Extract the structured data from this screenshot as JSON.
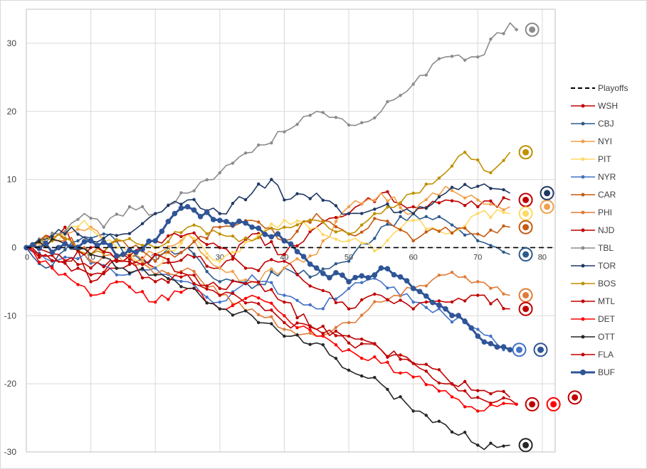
{
  "chart_data": {
    "type": "line",
    "title": "",
    "xlabel": "",
    "ylabel": "",
    "xlim": [
      0,
      82
    ],
    "ylim": [
      -30,
      35
    ],
    "x_ticks": [
      0,
      10,
      20,
      30,
      40,
      50,
      60,
      70,
      80
    ],
    "y_ticks": [
      -30,
      -20,
      -10,
      0,
      10,
      20,
      30
    ],
    "grid": "vertical and horizontal major gridlines",
    "legend_position": "right",
    "reference_line": {
      "name": "Playoffs",
      "y": 0,
      "style": "dashed",
      "color": "#000000"
    },
    "series": [
      {
        "name": "WSH",
        "color": "#C00000",
        "final_x": 75,
        "final_y": 7,
        "anchors": [
          [
            0,
            0
          ],
          [
            6,
            3
          ],
          [
            10,
            -5
          ],
          [
            15,
            -1
          ],
          [
            20,
            -3
          ],
          [
            25,
            -1
          ],
          [
            30,
            -3
          ],
          [
            35,
            2
          ],
          [
            40,
            -1
          ],
          [
            45,
            3
          ],
          [
            50,
            5
          ],
          [
            55,
            8
          ],
          [
            60,
            6
          ],
          [
            65,
            7
          ],
          [
            70,
            6
          ],
          [
            75,
            7
          ]
        ]
      },
      {
        "name": "CBJ",
        "color": "#2E5A8C",
        "final_x": 75,
        "final_y": -1,
        "anchors": [
          [
            0,
            0
          ],
          [
            3,
            -3
          ],
          [
            8,
            1
          ],
          [
            12,
            2
          ],
          [
            18,
            -2
          ],
          [
            25,
            0
          ],
          [
            30,
            -5
          ],
          [
            35,
            -6
          ],
          [
            40,
            -3
          ],
          [
            45,
            -4
          ],
          [
            50,
            -2
          ],
          [
            55,
            3
          ],
          [
            60,
            5
          ],
          [
            65,
            4
          ],
          [
            70,
            1
          ],
          [
            75,
            -1
          ]
        ]
      },
      {
        "name": "NYI",
        "color": "#F0A04B",
        "final_x": 75,
        "final_y": 6,
        "anchors": [
          [
            0,
            0
          ],
          [
            5,
            2
          ],
          [
            10,
            3
          ],
          [
            15,
            -2
          ],
          [
            20,
            -1
          ],
          [
            25,
            2
          ],
          [
            30,
            -3
          ],
          [
            35,
            -5
          ],
          [
            40,
            -3
          ],
          [
            45,
            -1
          ],
          [
            50,
            6
          ],
          [
            55,
            8
          ],
          [
            60,
            5
          ],
          [
            65,
            9
          ],
          [
            70,
            7
          ],
          [
            75,
            6
          ]
        ]
      },
      {
        "name": "PIT",
        "color": "#FFD966",
        "final_x": 75,
        "final_y": 5,
        "anchors": [
          [
            0,
            0
          ],
          [
            5,
            1
          ],
          [
            9,
            4
          ],
          [
            14,
            0
          ],
          [
            20,
            -3
          ],
          [
            25,
            2
          ],
          [
            30,
            -2
          ],
          [
            35,
            1
          ],
          [
            40,
            4
          ],
          [
            45,
            3
          ],
          [
            50,
            1
          ],
          [
            55,
            0
          ],
          [
            60,
            4
          ],
          [
            65,
            2
          ],
          [
            70,
            5
          ],
          [
            75,
            5
          ]
        ]
      },
      {
        "name": "NYR",
        "color": "#4472C4",
        "final_x": 74,
        "final_y": -15,
        "anchors": [
          [
            0,
            0
          ],
          [
            4,
            -2
          ],
          [
            9,
            -1
          ],
          [
            14,
            -4
          ],
          [
            20,
            -3
          ],
          [
            25,
            -5
          ],
          [
            30,
            -8
          ],
          [
            35,
            -4
          ],
          [
            40,
            -7
          ],
          [
            45,
            -9
          ],
          [
            50,
            -6
          ],
          [
            55,
            -5
          ],
          [
            60,
            -8
          ],
          [
            65,
            -10
          ],
          [
            70,
            -12
          ],
          [
            74,
            -15
          ]
        ]
      },
      {
        "name": "CAR",
        "color": "#C55A11",
        "final_x": 75,
        "final_y": 3,
        "anchors": [
          [
            0,
            0
          ],
          [
            5,
            2
          ],
          [
            10,
            -1
          ],
          [
            15,
            1
          ],
          [
            20,
            -2
          ],
          [
            25,
            0
          ],
          [
            30,
            3
          ],
          [
            35,
            4
          ],
          [
            40,
            1
          ],
          [
            45,
            5
          ],
          [
            50,
            2
          ],
          [
            55,
            4
          ],
          [
            60,
            1
          ],
          [
            65,
            3
          ],
          [
            70,
            2
          ],
          [
            75,
            3
          ]
        ]
      },
      {
        "name": "PHI",
        "color": "#E07B39",
        "final_x": 75,
        "final_y": -7,
        "anchors": [
          [
            0,
            0
          ],
          [
            5,
            1
          ],
          [
            10,
            -2
          ],
          [
            15,
            -1
          ],
          [
            20,
            -4
          ],
          [
            25,
            -3
          ],
          [
            30,
            -7
          ],
          [
            35,
            -9
          ],
          [
            40,
            -12
          ],
          [
            45,
            -13
          ],
          [
            50,
            -11
          ],
          [
            55,
            -8
          ],
          [
            60,
            -6
          ],
          [
            65,
            -4
          ],
          [
            70,
            -5
          ],
          [
            75,
            -7
          ]
        ]
      },
      {
        "name": "NJD",
        "color": "#C00000",
        "final_x": 76,
        "final_y": -23,
        "anchors": [
          [
            0,
            0
          ],
          [
            5,
            -2
          ],
          [
            10,
            -4
          ],
          [
            15,
            -3
          ],
          [
            20,
            -1
          ],
          [
            25,
            -4
          ],
          [
            30,
            -6
          ],
          [
            35,
            -5
          ],
          [
            40,
            -8
          ],
          [
            45,
            -12
          ],
          [
            50,
            -14
          ],
          [
            55,
            -15
          ],
          [
            60,
            -17
          ],
          [
            65,
            -20
          ],
          [
            70,
            -22
          ],
          [
            76,
            -23
          ]
        ]
      },
      {
        "name": "TBL",
        "color": "#8C8C8C",
        "final_x": 76,
        "final_y": 32,
        "anchors": [
          [
            0,
            0
          ],
          [
            5,
            2
          ],
          [
            9,
            5
          ],
          [
            12,
            3
          ],
          [
            16,
            6
          ],
          [
            20,
            5
          ],
          [
            25,
            8
          ],
          [
            30,
            11
          ],
          [
            35,
            14
          ],
          [
            40,
            17
          ],
          [
            45,
            20
          ],
          [
            50,
            18
          ],
          [
            55,
            20
          ],
          [
            60,
            24
          ],
          [
            65,
            28
          ],
          [
            70,
            28
          ],
          [
            75,
            33
          ],
          [
            76,
            32
          ]
        ]
      },
      {
        "name": "TOR",
        "color": "#1F3864",
        "final_x": 75,
        "final_y": 8,
        "anchors": [
          [
            0,
            0
          ],
          [
            7,
            3
          ],
          [
            10,
            1
          ],
          [
            15,
            2
          ],
          [
            20,
            5
          ],
          [
            25,
            7
          ],
          [
            30,
            5
          ],
          [
            35,
            8
          ],
          [
            38,
            10
          ],
          [
            40,
            7
          ],
          [
            45,
            8
          ],
          [
            50,
            5
          ],
          [
            55,
            6
          ],
          [
            60,
            5
          ],
          [
            65,
            8
          ],
          [
            70,
            9
          ],
          [
            75,
            8
          ]
        ]
      },
      {
        "name": "BOS",
        "color": "#BF9000",
        "final_x": 75,
        "final_y": 14,
        "anchors": [
          [
            0,
            0
          ],
          [
            5,
            2
          ],
          [
            10,
            -1
          ],
          [
            15,
            1
          ],
          [
            20,
            0
          ],
          [
            25,
            3
          ],
          [
            30,
            2
          ],
          [
            35,
            1
          ],
          [
            40,
            3
          ],
          [
            45,
            4
          ],
          [
            50,
            2
          ],
          [
            55,
            5
          ],
          [
            60,
            8
          ],
          [
            65,
            11
          ],
          [
            68,
            14
          ],
          [
            72,
            11
          ],
          [
            75,
            14
          ]
        ]
      },
      {
        "name": "MTL",
        "color": "#C00000",
        "final_x": 75,
        "final_y": -9,
        "anchors": [
          [
            0,
            0
          ],
          [
            6,
            -2
          ],
          [
            10,
            0
          ],
          [
            15,
            -2
          ],
          [
            20,
            1
          ],
          [
            25,
            2
          ],
          [
            30,
            0
          ],
          [
            35,
            -3
          ],
          [
            40,
            -2
          ],
          [
            45,
            -6
          ],
          [
            50,
            -9
          ],
          [
            55,
            -7
          ],
          [
            60,
            -9
          ],
          [
            65,
            -8
          ],
          [
            70,
            -7
          ],
          [
            75,
            -9
          ]
        ]
      },
      {
        "name": "DET",
        "color": "#FF0000",
        "final_x": 76,
        "final_y": -23,
        "anchors": [
          [
            0,
            0
          ],
          [
            4,
            -3
          ],
          [
            10,
            -7
          ],
          [
            15,
            -5
          ],
          [
            20,
            -8
          ],
          [
            25,
            -6
          ],
          [
            30,
            -9
          ],
          [
            35,
            -7
          ],
          [
            40,
            -10
          ],
          [
            45,
            -13
          ],
          [
            50,
            -15
          ],
          [
            55,
            -17
          ],
          [
            60,
            -19
          ],
          [
            65,
            -21
          ],
          [
            70,
            -24
          ],
          [
            76,
            -23
          ]
        ]
      },
      {
        "name": "OTT",
        "color": "#262626",
        "final_x": 75,
        "final_y": -29,
        "anchors": [
          [
            0,
            0
          ],
          [
            5,
            1
          ],
          [
            10,
            -1
          ],
          [
            15,
            -3
          ],
          [
            20,
            -4
          ],
          [
            25,
            -6
          ],
          [
            30,
            -9
          ],
          [
            35,
            -10
          ],
          [
            40,
            -13
          ],
          [
            45,
            -14
          ],
          [
            50,
            -18
          ],
          [
            55,
            -20
          ],
          [
            60,
            -24
          ],
          [
            65,
            -26
          ],
          [
            70,
            -29
          ],
          [
            75,
            -29
          ]
        ]
      },
      {
        "name": "FLA",
        "color": "#C00000",
        "final_x": 75,
        "final_y": -22,
        "anchors": [
          [
            0,
            0
          ],
          [
            5,
            -1
          ],
          [
            10,
            -3
          ],
          [
            15,
            -2
          ],
          [
            20,
            -5
          ],
          [
            25,
            -4
          ],
          [
            30,
            -7
          ],
          [
            35,
            -8
          ],
          [
            40,
            -11
          ],
          [
            45,
            -12
          ],
          [
            50,
            -13
          ],
          [
            55,
            -15
          ],
          [
            60,
            -17
          ],
          [
            65,
            -19
          ],
          [
            70,
            -21
          ],
          [
            75,
            -22
          ]
        ]
      },
      {
        "name": "BUF",
        "color": "#2F5597",
        "final_x": 75,
        "final_y": -15,
        "anchors": [
          [
            0,
            0
          ],
          [
            5,
            0
          ],
          [
            10,
            1
          ],
          [
            15,
            -1
          ],
          [
            20,
            1
          ],
          [
            23,
            5
          ],
          [
            25,
            6
          ],
          [
            30,
            4
          ],
          [
            35,
            3
          ],
          [
            40,
            1
          ],
          [
            45,
            -3
          ],
          [
            50,
            -5
          ],
          [
            55,
            -3
          ],
          [
            60,
            -6
          ],
          [
            65,
            -9
          ],
          [
            70,
            -13
          ],
          [
            75,
            -15
          ]
        ]
      }
    ]
  }
}
